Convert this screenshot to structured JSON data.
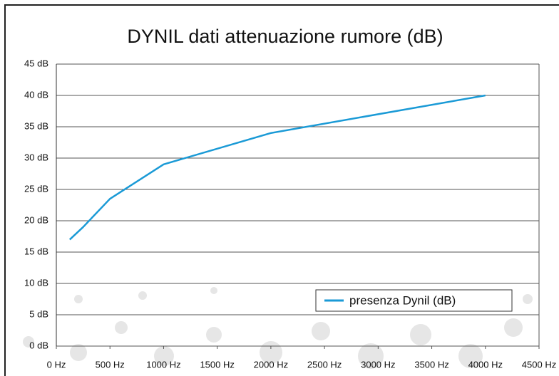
{
  "chart_data": {
    "type": "line",
    "title": "DYNIL dati attenuazione rumore (dB)",
    "x": [
      125,
      250,
      500,
      1000,
      2000,
      4000
    ],
    "series": [
      {
        "name": "presenza Dynil (dB)",
        "color": "#1a9ad6",
        "values": [
          17,
          19,
          23.5,
          29,
          34,
          40
        ]
      }
    ],
    "xlim": [
      0,
      4500
    ],
    "xticks": [
      {
        "value": 0,
        "label": "0 Hz"
      },
      {
        "value": 500,
        "label": "500 Hz"
      },
      {
        "value": 1000,
        "label": "1000 Hz"
      },
      {
        "value": 1500,
        "label": "1500 Hz"
      },
      {
        "value": 2000,
        "label": "2000 Hz"
      },
      {
        "value": 2500,
        "label": "2500 Hz"
      },
      {
        "value": 3000,
        "label": "3000 Hz"
      },
      {
        "value": 3500,
        "label": "3500 Hz"
      },
      {
        "value": 4000,
        "label": "4000 Hz"
      },
      {
        "value": 4500,
        "label": "4500 Hz"
      }
    ],
    "ylim": [
      0,
      45
    ],
    "yticks": [
      {
        "value": 0,
        "label": "0 dB"
      },
      {
        "value": 5,
        "label": "5 dB"
      },
      {
        "value": 10,
        "label": "10 dB"
      },
      {
        "value": 15,
        "label": "15 dB"
      },
      {
        "value": 20,
        "label": "20 dB"
      },
      {
        "value": 25,
        "label": "25 dB"
      },
      {
        "value": 30,
        "label": "30 dB"
      },
      {
        "value": 35,
        "label": "35 dB"
      },
      {
        "value": 40,
        "label": "40 dB"
      },
      {
        "value": 45,
        "label": "45 dB"
      }
    ],
    "grid": true,
    "legend": "lower-right"
  }
}
